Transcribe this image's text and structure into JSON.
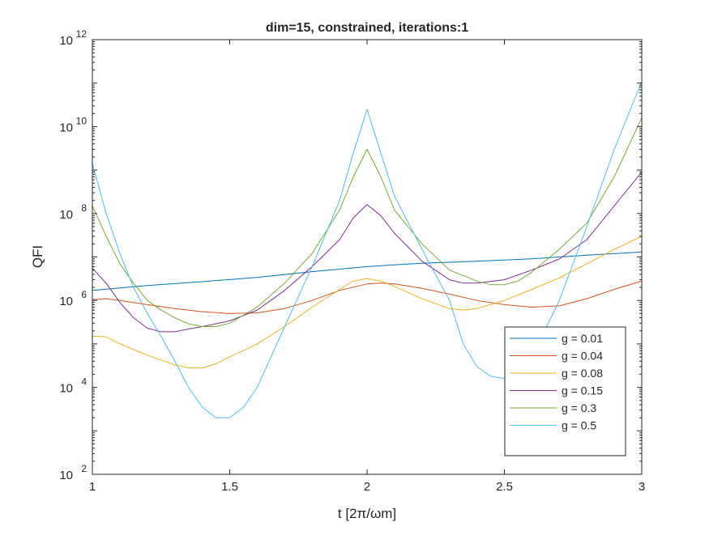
{
  "chart_data": {
    "type": "line",
    "title": "dim=15, constrained, iterations:1",
    "xlabel": "t [2π/ωm]",
    "ylabel": "QFI",
    "xlim": [
      1,
      3
    ],
    "ylim": [
      100,
      1000000000000
    ],
    "yscale": "log",
    "grid": false,
    "legend_position": "bottom-right",
    "x_ticks": [
      {
        "value": 1,
        "label": "1"
      },
      {
        "value": 1.5,
        "label": "1.5"
      },
      {
        "value": 2,
        "label": "2"
      },
      {
        "value": 2.5,
        "label": "2.5"
      },
      {
        "value": 3,
        "label": "3"
      }
    ],
    "y_ticks": [
      {
        "value": 100,
        "base": "10",
        "exp": "2"
      },
      {
        "value": 10000,
        "base": "10",
        "exp": "4"
      },
      {
        "value": 1000000,
        "base": "10",
        "exp": "6"
      },
      {
        "value": 100000000,
        "base": "10",
        "exp": "8"
      },
      {
        "value": 10000000000,
        "base": "10",
        "exp": "10"
      },
      {
        "value": 1000000000000,
        "base": "10",
        "exp": "12"
      }
    ],
    "series": [
      {
        "name": "g = 0.01",
        "color": "#0072BD",
        "x": [
          1,
          1.2,
          1.4,
          1.6,
          1.8,
          2.0,
          2.2,
          2.4,
          2.6,
          2.8,
          3.0
        ],
        "y": [
          1700000,
          2200000,
          2700000,
          3400000,
          4600000,
          6000000,
          7200000,
          8000000,
          9100000,
          11000000,
          13000000
        ]
      },
      {
        "name": "g = 0.04",
        "color": "#D95319",
        "x": [
          1,
          1.05,
          1.1,
          1.2,
          1.3,
          1.4,
          1.5,
          1.6,
          1.7,
          1.8,
          1.9,
          2.0,
          2.05,
          2.1,
          2.2,
          2.3,
          2.4,
          2.5,
          2.6,
          2.7,
          2.8,
          2.9,
          3.0
        ],
        "y": [
          1050000,
          1100000,
          1000000,
          800000,
          650000,
          550000,
          500000,
          520000,
          650000,
          1000000,
          1700000,
          2400000,
          2500000,
          2400000,
          1900000,
          1400000,
          1000000,
          800000,
          700000,
          750000,
          1100000,
          1800000,
          2800000
        ]
      },
      {
        "name": "g = 0.08",
        "color": "#EDB120",
        "x": [
          1,
          1.05,
          1.1,
          1.2,
          1.3,
          1.35,
          1.4,
          1.45,
          1.5,
          1.6,
          1.7,
          1.8,
          1.9,
          1.95,
          2.0,
          2.05,
          2.1,
          2.2,
          2.3,
          2.35,
          2.4,
          2.5,
          2.6,
          2.7,
          2.8,
          2.9,
          3.0
        ],
        "y": [
          150000,
          145000,
          100000,
          55000,
          33000,
          28000,
          28000,
          35000,
          50000,
          100000,
          250000,
          700000,
          1800000,
          2800000,
          3200000,
          2800000,
          2100000,
          1100000,
          650000,
          600000,
          650000,
          1000000,
          1800000,
          3300000,
          7000000,
          15000000,
          30000000
        ]
      },
      {
        "name": "g = 0.15",
        "color": "#7E2F8E",
        "x": [
          1,
          1.05,
          1.1,
          1.15,
          1.2,
          1.25,
          1.3,
          1.35,
          1.4,
          1.5,
          1.6,
          1.7,
          1.8,
          1.9,
          1.95,
          2.0,
          2.05,
          2.1,
          2.2,
          2.3,
          2.35,
          2.4,
          2.5,
          2.6,
          2.7,
          2.8,
          2.9,
          3.0
        ],
        "y": [
          5500000,
          2500000,
          900000,
          400000,
          230000,
          190000,
          190000,
          220000,
          250000,
          340000,
          600000,
          1700000,
          6000000,
          25000000,
          80000000,
          160000000,
          90000000,
          35000000,
          8000000,
          3000000,
          2500000,
          2500000,
          3000000,
          5000000,
          9000000,
          25000000,
          150000000,
          900000000
        ]
      },
      {
        "name": "g = 0.3",
        "color": "#77AC30",
        "x": [
          1,
          1.05,
          1.1,
          1.15,
          1.2,
          1.25,
          1.3,
          1.35,
          1.4,
          1.45,
          1.5,
          1.6,
          1.7,
          1.8,
          1.9,
          1.95,
          2.0,
          2.05,
          2.1,
          2.2,
          2.3,
          2.4,
          2.45,
          2.5,
          2.55,
          2.6,
          2.7,
          2.8,
          2.9,
          3.0
        ],
        "y": [
          150000000,
          30000000,
          7000000,
          2500000,
          1000000,
          600000,
          400000,
          290000,
          250000,
          250000,
          300000,
          700000,
          2500000,
          12000000,
          120000000,
          700000000,
          3000000000,
          700000000,
          120000000,
          20000000,
          5000000,
          2800000,
          2300000,
          2300000,
          2800000,
          4500000,
          15000000,
          60000000,
          700000000,
          16000000000
        ]
      },
      {
        "name": "g = 0.5",
        "color": "#4DBEEE",
        "x": [
          1,
          1.05,
          1.1,
          1.15,
          1.2,
          1.25,
          1.3,
          1.35,
          1.4,
          1.45,
          1.5,
          1.55,
          1.6,
          1.7,
          1.8,
          1.9,
          1.95,
          2.0,
          2.05,
          2.1,
          2.2,
          2.3,
          2.35,
          2.4,
          2.45,
          2.5,
          2.55,
          2.6,
          2.7,
          2.8,
          2.9,
          3.0
        ],
        "y": [
          1400000000,
          100000000,
          12000000,
          2000000,
          500000,
          150000,
          40000,
          10000,
          3500,
          2000,
          2000,
          3500,
          10000,
          250000,
          6000000,
          200000000,
          2500000000,
          25000000000,
          2500000000,
          250000000,
          15000000,
          1000000,
          100000,
          30000,
          18000,
          16000,
          20000,
          50000,
          1000000,
          50000000,
          3000000000,
          110000000000
        ]
      }
    ]
  }
}
